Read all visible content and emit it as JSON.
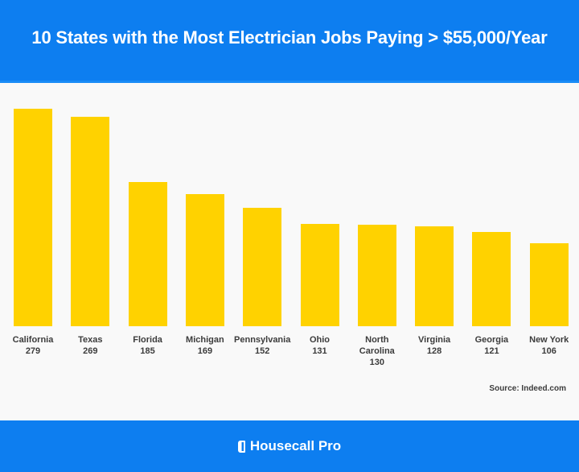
{
  "header": {
    "title": "10 States with the Most Electrician Jobs Paying > $55,000/Year"
  },
  "footer": {
    "brand": "Housecall Pro",
    "brand_icon": "housecall-pro-logo-icon"
  },
  "source": "Source: Indeed.com",
  "colors": {
    "header_bg": "#0d7ef0",
    "bar": "#ffd200",
    "background": "#f9f9f9",
    "label_text": "#3c3c3c"
  },
  "bars": [
    {
      "name": "California",
      "value": "279"
    },
    {
      "name": "Texas",
      "value": "269"
    },
    {
      "name": "Florida",
      "value": "185"
    },
    {
      "name": "Michigan",
      "value": "169"
    },
    {
      "name": "Pennsylvania",
      "value": "152"
    },
    {
      "name": "Ohio",
      "value": "131"
    },
    {
      "name": "North Carolina",
      "value": "130"
    },
    {
      "name": "Virginia",
      "value": "128"
    },
    {
      "name": "Georgia",
      "value": "121"
    },
    {
      "name": "New York",
      "value": "106"
    }
  ],
  "chart_data": {
    "type": "bar",
    "title": "10 States with the Most Electrician Jobs Paying > $55,000/Year",
    "categories": [
      "California",
      "Texas",
      "Florida",
      "Michigan",
      "Pennsylvania",
      "Ohio",
      "North Carolina",
      "Virginia",
      "Georgia",
      "New York"
    ],
    "values": [
      279,
      269,
      185,
      169,
      152,
      131,
      130,
      128,
      121,
      106
    ],
    "xlabel": "",
    "ylabel": "",
    "ylim": [
      0,
      279
    ],
    "grid": false,
    "legend": null,
    "annotations": [
      "Source: Indeed.com"
    ]
  }
}
